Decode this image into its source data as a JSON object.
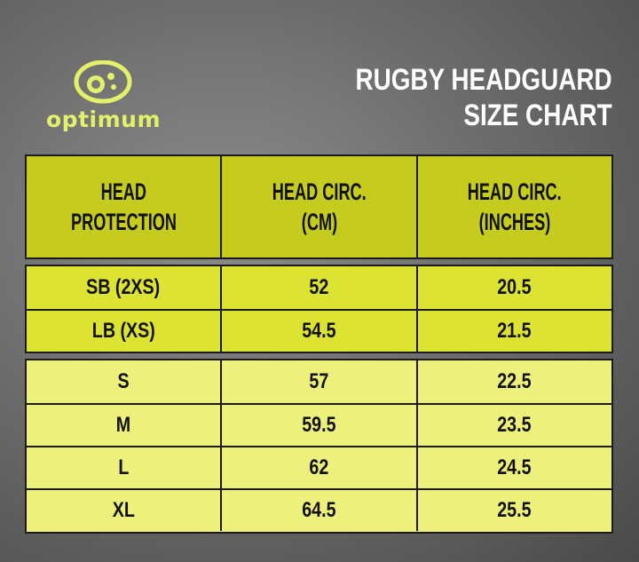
{
  "brand": {
    "name": "optimum"
  },
  "title": {
    "line1": "RUGBY HEADGUARD",
    "line2": "SIZE CHART"
  },
  "colors": {
    "header": "#c5cc1e",
    "group1": "#dde332",
    "group2": "#eef07c",
    "logo": "#e3f06a"
  },
  "table": {
    "headers": [
      {
        "line1": "HEAD",
        "line2": "PROTECTION"
      },
      {
        "line1": "HEAD CIRC.",
        "line2": "(CM)"
      },
      {
        "line1": "HEAD CIRC.",
        "line2": "(INCHES)"
      }
    ],
    "group1": [
      [
        "SB (2XS)",
        "52",
        "20.5"
      ],
      [
        "LB (XS)",
        "54.5",
        "21.5"
      ]
    ],
    "group2": [
      [
        "S",
        "57",
        "22.5"
      ],
      [
        "M",
        "59.5",
        "23.5"
      ],
      [
        "L",
        "62",
        "24.5"
      ],
      [
        "XL",
        "64.5",
        "25.5"
      ]
    ]
  }
}
